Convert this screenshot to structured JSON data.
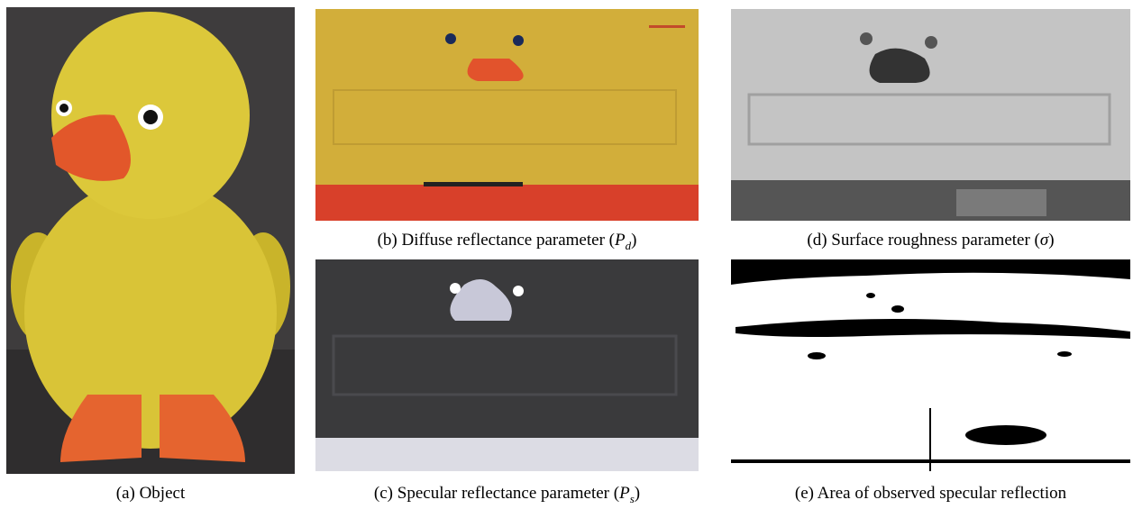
{
  "figure": {
    "panels": [
      {
        "caption_parts": [
          "(a) Object"
        ]
      },
      {
        "caption_parts": [
          "(b) Diffuse reflectance parameter (",
          "P",
          "d",
          ")"
        ]
      },
      {
        "caption_parts": [
          "(d) Surface roughness parameter (",
          "σ",
          ")"
        ]
      },
      {
        "caption_parts": [
          "(c) Specular reflectance parameter (",
          "P",
          "s",
          ")"
        ]
      },
      {
        "caption_parts": [
          "(e) Area of observed specular reflection"
        ]
      }
    ]
  }
}
